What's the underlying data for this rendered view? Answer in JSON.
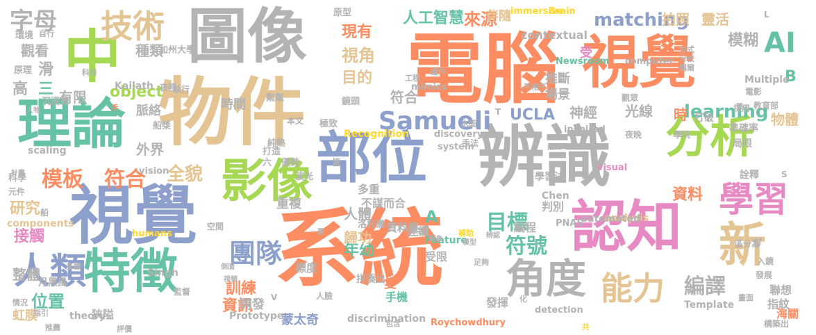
{
  "palette": {
    "orange": "#fc8d62",
    "teal": "#66c2a5",
    "blue": "#8da0cb",
    "pink": "#e78ac3",
    "green": "#a6d854",
    "tan": "#e5c494",
    "gray": "#b3b3b3",
    "yellow": "#ffd92f"
  },
  "words": [
    {
      "text": "系統",
      "color": "orange"
    },
    {
      "text": "電腦",
      "color": "orange"
    },
    {
      "text": "辨識",
      "color": "gray"
    },
    {
      "text": "物件",
      "color": "tan"
    },
    {
      "text": "圖像",
      "color": "gray"
    },
    {
      "text": "視覺",
      "color": "blue"
    },
    {
      "text": "視覺",
      "color": "orange"
    },
    {
      "text": "理論",
      "color": "teal"
    },
    {
      "text": "特徵",
      "color": "teal"
    },
    {
      "text": "部位",
      "color": "blue"
    },
    {
      "text": "認知",
      "color": "pink"
    },
    {
      "text": "中",
      "color": "green"
    },
    {
      "text": "影像",
      "color": "green"
    },
    {
      "text": "分析",
      "color": "green"
    },
    {
      "text": "人類",
      "color": "blue"
    },
    {
      "text": "角度",
      "color": "gray"
    },
    {
      "text": "新",
      "color": "tan"
    },
    {
      "text": "學習",
      "color": "pink"
    },
    {
      "text": "能力",
      "color": "tan"
    },
    {
      "text": "技術",
      "color": "tan"
    },
    {
      "text": "字母",
      "color": "gray"
    },
    {
      "text": "Samueli",
      "color": "blue"
    },
    {
      "text": "AI",
      "color": "teal"
    },
    {
      "text": "團隊",
      "color": "blue"
    },
    {
      "text": "模板",
      "color": "orange"
    },
    {
      "text": "符合",
      "color": "orange"
    },
    {
      "text": "matching",
      "color": "blue"
    },
    {
      "text": "符號",
      "color": "teal"
    },
    {
      "text": "編譯",
      "color": "gray"
    },
    {
      "text": "目標",
      "color": "teal"
    },
    {
      "text": "learning",
      "color": "teal"
    },
    {
      "text": "UCLA",
      "color": "blue"
    },
    {
      "text": "object",
      "color": "green"
    },
    {
      "text": "來源",
      "color": "orange"
    },
    {
      "text": "人工智慧",
      "color": "teal"
    },
    {
      "text": "現有",
      "color": "orange"
    },
    {
      "text": "視角",
      "color": "tan"
    },
    {
      "text": "模糊",
      "color": "gray"
    },
    {
      "text": "拍照",
      "color": "tan"
    },
    {
      "text": "靈活",
      "color": "tan"
    },
    {
      "text": "contextual",
      "color": "gray"
    },
    {
      "text": "全貌",
      "color": "tan"
    },
    {
      "text": "接觸",
      "color": "pink"
    },
    {
      "text": "研究",
      "color": "tan"
    },
    {
      "text": "位置",
      "color": "teal"
    },
    {
      "text": "種類",
      "color": "gray"
    },
    {
      "text": "觀看",
      "color": "gray"
    },
    {
      "text": "滑",
      "color": "gray"
    },
    {
      "text": "有限",
      "color": "gray"
    },
    {
      "text": "外界",
      "color": "gray"
    },
    {
      "text": "脈絡",
      "color": "gray"
    },
    {
      "text": "時間",
      "color": "gray"
    },
    {
      "text": "重複",
      "color": "gray"
    },
    {
      "text": "訓練",
      "color": "orange"
    },
    {
      "text": "資訊",
      "color": "orange"
    },
    {
      "text": "年幼",
      "color": "teal"
    },
    {
      "text": "開發",
      "color": "gray"
    },
    {
      "text": "資料",
      "color": "orange"
    },
    {
      "text": "人體",
      "color": "gray"
    },
    {
      "text": "歸功",
      "color": "tan"
    },
    {
      "text": "神經",
      "color": "gray"
    },
    {
      "text": "光線",
      "color": "gray"
    },
    {
      "text": "時",
      "color": "orange"
    },
    {
      "text": "場景",
      "color": "gray"
    },
    {
      "text": "推斷",
      "color": "gray"
    },
    {
      "text": "目的",
      "color": "tan"
    },
    {
      "text": "符合",
      "color": "gray"
    },
    {
      "text": "物體",
      "color": "tan"
    },
    {
      "text": "整體",
      "color": "gray"
    },
    {
      "text": "受",
      "color": "pink"
    },
    {
      "text": "高",
      "color": "gray"
    },
    {
      "text": "三",
      "color": "teal"
    },
    {
      "text": "B",
      "color": "teal"
    },
    {
      "text": "A",
      "color": "teal"
    },
    {
      "text": "蒙太奇",
      "color": "blue"
    },
    {
      "text": "伴隨",
      "color": "tan"
    },
    {
      "text": "隻",
      "color": "orange"
    },
    {
      "text": "手機",
      "color": "teal"
    },
    {
      "text": "發揮",
      "color": "gray"
    },
    {
      "text": "標度",
      "color": "gray"
    },
    {
      "text": "多重",
      "color": "gray"
    },
    {
      "text": "不謀而合",
      "color": "gray"
    },
    {
      "text": "受限",
      "color": "gray"
    },
    {
      "text": "判別",
      "color": "gray"
    },
    {
      "text": "資料集",
      "color": "gray"
    },
    {
      "text": "連續",
      "color": "gray"
    },
    {
      "text": "編程",
      "color": "gray"
    },
    {
      "text": "指紋",
      "color": "gray"
    },
    {
      "text": "聯想",
      "color": "gray"
    },
    {
      "text": "海關",
      "color": "orange"
    },
    {
      "text": "虹膜",
      "color": "tan"
    },
    {
      "text": "狹隘",
      "color": "gray"
    },
    {
      "text": "月黑風",
      "color": "gray"
    },
    {
      "text": "Prototype",
      "color": "gray"
    },
    {
      "text": "discrimination",
      "color": "gray"
    },
    {
      "text": "Feature",
      "color": "teal"
    },
    {
      "text": "analysis",
      "color": "tan"
    },
    {
      "text": "Template",
      "color": "gray"
    },
    {
      "text": "Recognition",
      "color": "yellow"
    },
    {
      "text": "Kailath",
      "color": "gray"
    },
    {
      "text": "Singh",
      "color": "gray"
    },
    {
      "text": "theory",
      "color": "gray"
    },
    {
      "text": "Chen",
      "color": "gray"
    },
    {
      "text": "components",
      "color": "tan"
    },
    {
      "text": "scaling",
      "color": "gray"
    },
    {
      "text": "Multiple",
      "color": "gray"
    },
    {
      "text": "automated",
      "color": "gray"
    },
    {
      "text": "Roychowdhury",
      "color": "orange"
    },
    {
      "text": "immersive",
      "color": "yellow"
    },
    {
      "text": "Brain",
      "color": "yellow"
    },
    {
      "text": "Newsroom",
      "color": "teal"
    },
    {
      "text": "computer",
      "color": "gray"
    },
    {
      "text": "mimics",
      "color": "gray"
    },
    {
      "text": "discovery",
      "color": "gray"
    },
    {
      "text": "system",
      "color": "gray"
    },
    {
      "text": "visual",
      "color": "pink"
    },
    {
      "text": "vision",
      "color": "gray"
    },
    {
      "text": "detection",
      "color": "gray"
    },
    {
      "text": "inspired",
      "color": "gray"
    },
    {
      "text": "humans",
      "color": "yellow"
    },
    {
      "text": "PNAS",
      "color": "gray"
    },
    {
      "text": "加州大學",
      "color": "gray"
    },
    {
      "text": "原型",
      "color": "gray"
    },
    {
      "text": "原理",
      "color": "gray"
    },
    {
      "text": "環境",
      "color": "gray"
    },
    {
      "text": "自行",
      "color": "gray"
    },
    {
      "text": "科學",
      "color": "gray"
    },
    {
      "text": "元件",
      "color": "gray"
    },
    {
      "text": "夜晚",
      "color": "gray"
    },
    {
      "text": "運作",
      "color": "gray"
    },
    {
      "text": "工程",
      "color": "gray"
    },
    {
      "text": "鏡頭",
      "color": "gray"
    },
    {
      "text": "極致",
      "color": "gray"
    },
    {
      "text": "打破",
      "color": "gray"
    },
    {
      "text": "準確率",
      "color": "gray"
    },
    {
      "text": "教育部",
      "color": "gray"
    },
    {
      "text": "學院",
      "color": "gray"
    },
    {
      "text": "局限",
      "color": "gray"
    },
    {
      "text": "詮釋",
      "color": "gray"
    },
    {
      "text": "區分為",
      "color": "gray"
    },
    {
      "text": "入鏡",
      "color": "gray"
    },
    {
      "text": "發展",
      "color": "gray"
    },
    {
      "text": "構築出",
      "color": "gray"
    },
    {
      "text": "學習法",
      "color": "gray"
    },
    {
      "text": "拼湊出",
      "color": "gray"
    },
    {
      "text": "洛杉磯",
      "color": "gray"
    },
    {
      "text": "本文",
      "color": "gray"
    },
    {
      "text": "水面",
      "color": "gray"
    },
    {
      "text": "手法",
      "color": "gray"
    },
    {
      "text": "優勢",
      "color": "gray"
    },
    {
      "text": "純熱",
      "color": "gray"
    },
    {
      "text": "波光",
      "color": "gray"
    },
    {
      "text": "打造",
      "color": "gray"
    },
    {
      "text": "沉浸式",
      "color": "gray"
    },
    {
      "text": "夜裡",
      "color": "gray"
    },
    {
      "text": "執行",
      "color": "gray"
    },
    {
      "text": "粼粼",
      "color": "gray"
    },
    {
      "text": "船槳",
      "color": "gray"
    },
    {
      "text": "六",
      "color": "gray"
    },
    {
      "text": "皆",
      "color": "gray"
    },
    {
      "text": "船",
      "color": "gray"
    },
    {
      "text": "空間",
      "color": "gray"
    },
    {
      "text": "指引",
      "color": "gray"
    },
    {
      "text": "多樣",
      "color": "gray"
    },
    {
      "text": "情況",
      "color": "gray"
    },
    {
      "text": "推薦",
      "color": "gray"
    },
    {
      "text": "評價",
      "color": "gray"
    },
    {
      "text": "包含",
      "color": "gray"
    },
    {
      "text": "人臉",
      "color": "gray"
    },
    {
      "text": "監督",
      "color": "gray"
    },
    {
      "text": "觀眾",
      "color": "gray"
    },
    {
      "text": "採用",
      "color": "gray"
    },
    {
      "text": "電影",
      "color": "gray"
    },
    {
      "text": "方式",
      "color": "gray"
    },
    {
      "text": "分校",
      "color": "gray"
    },
    {
      "text": "偶爾",
      "color": "gray"
    },
    {
      "text": "科目",
      "color": "gray"
    },
    {
      "text": "人物",
      "color": "gray"
    },
    {
      "text": "手",
      "color": "orange"
    },
    {
      "text": "計畫",
      "color": "gray"
    },
    {
      "text": "不相干",
      "color": "gray"
    },
    {
      "text": "補助",
      "color": "yellow"
    },
    {
      "text": "模型",
      "color": "gray"
    },
    {
      "text": "辨認",
      "color": "gray"
    },
    {
      "text": "足夠",
      "color": "gray"
    },
    {
      "text": "付",
      "color": "gray"
    },
    {
      "text": "共",
      "color": "yellow"
    },
    {
      "text": "化",
      "color": "gray"
    },
    {
      "text": "畫面",
      "color": "gray"
    },
    {
      "text": "要",
      "color": "gray"
    },
    {
      "text": "拍攝",
      "color": "gray"
    },
    {
      "text": "側面",
      "color": "gray"
    },
    {
      "text": "視頻",
      "color": "gray"
    },
    {
      "text": "對象",
      "color": "gray"
    },
    {
      "text": "張",
      "color": "gray"
    },
    {
      "text": "S",
      "color": "gray"
    },
    {
      "text": "L",
      "color": "gray"
    },
    {
      "text": "T",
      "color": "gray"
    },
    {
      "text": "V",
      "color": "gray"
    }
  ]
}
